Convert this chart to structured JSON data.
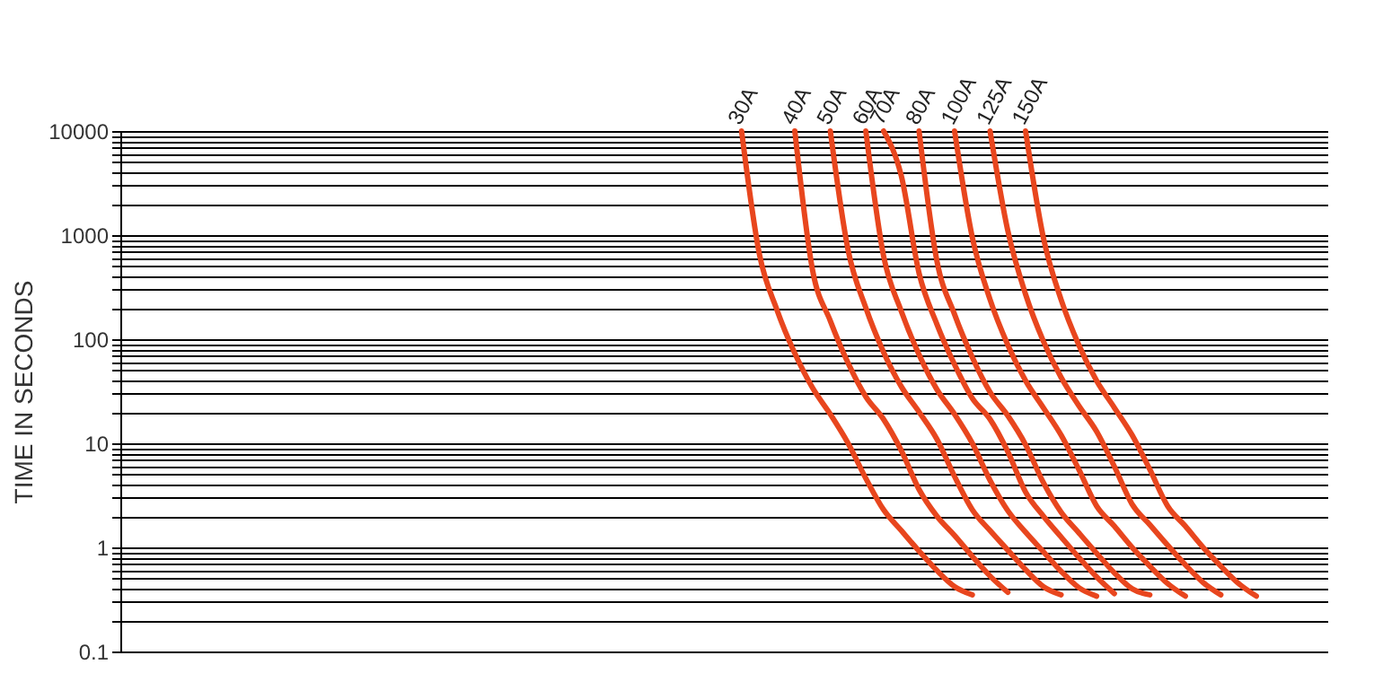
{
  "chart_data": {
    "type": "line",
    "ylabel": "TIME IN SECONDS",
    "categories": [
      null,
      null,
      null,
      null,
      null,
      null,
      null,
      null,
      null,
      null,
      null,
      null,
      null,
      null,
      null,
      null,
      null,
      null,
      null,
      null,
      null,
      null,
      null,
      null,
      null,
      null,
      null,
      null,
      null,
      null,
      null,
      null,
      null,
      null,
      null,
      null,
      null,
      null,
      null,
      null,
      null,
      null,
      null,
      null,
      null,
      null,
      null,
      null,
      null,
      null,
      null,
      null,
      null,
      null,
      null,
      null,
      null,
      null,
      null,
      null,
      null,
      null,
      null,
      null,
      null,
      null,
      null,
      null,
      null
    ],
    "series": [
      {
        "name": "30A",
        "color": "#e8461e",
        "values": [
          null,
          null,
          null,
          null,
          null,
          null,
          null,
          null,
          null,
          null,
          null,
          null,
          null,
          null,
          null,
          null,
          null,
          null,
          null,
          null,
          null,
          null,
          null,
          null,
          null,
          null,
          null,
          null,
          null,
          null,
          null,
          null,
          null,
          null,
          null,
          10000,
          660,
          190,
          73,
          34,
          19,
          10,
          4.6,
          2.3,
          1.45,
          0.92,
          0.6,
          0.42,
          0.35,
          null,
          null,
          null,
          null,
          null,
          null,
          null,
          null,
          null,
          null,
          null,
          null,
          null,
          null,
          null,
          null,
          null,
          null,
          null,
          null
        ]
      },
      {
        "name": "40A",
        "color": "#e8461e",
        "values": [
          null,
          null,
          null,
          null,
          null,
          null,
          null,
          null,
          null,
          null,
          null,
          null,
          null,
          null,
          null,
          null,
          null,
          null,
          null,
          null,
          null,
          null,
          null,
          null,
          null,
          null,
          null,
          null,
          null,
          null,
          null,
          null,
          null,
          null,
          null,
          null,
          null,
          null,
          10000,
          460,
          150,
          59,
          28,
          17,
          8.5,
          3.6,
          2.0,
          1.3,
          0.82,
          0.53,
          0.37,
          null,
          null,
          null,
          null,
          null,
          null,
          null,
          null,
          null,
          null,
          null,
          null,
          null,
          null,
          null,
          null,
          null,
          null
        ]
      },
      {
        "name": "50A",
        "color": "#e8461e",
        "values": [
          null,
          null,
          null,
          null,
          null,
          null,
          null,
          null,
          null,
          null,
          null,
          null,
          null,
          null,
          null,
          null,
          null,
          null,
          null,
          null,
          null,
          null,
          null,
          null,
          null,
          null,
          null,
          null,
          null,
          null,
          null,
          null,
          null,
          null,
          null,
          null,
          null,
          null,
          null,
          null,
          10000,
          720,
          200,
          75,
          35,
          20,
          11,
          4.8,
          2.3,
          1.45,
          0.94,
          0.61,
          0.42,
          0.35,
          null,
          null,
          null,
          null,
          null,
          null,
          null,
          null,
          null,
          null,
          null,
          null,
          null,
          null,
          null
        ]
      },
      {
        "name": "60A",
        "color": "#e8461e",
        "values": [
          null,
          null,
          null,
          null,
          null,
          null,
          null,
          null,
          null,
          null,
          null,
          null,
          null,
          null,
          null,
          null,
          null,
          null,
          null,
          null,
          null,
          null,
          null,
          null,
          null,
          null,
          null,
          null,
          null,
          null,
          null,
          null,
          null,
          null,
          null,
          null,
          null,
          null,
          null,
          null,
          null,
          null,
          10000,
          630,
          185,
          71,
          33,
          19,
          10,
          4.4,
          2.25,
          1.4,
          0.91,
          0.59,
          0.41,
          0.34,
          null,
          null,
          null,
          null,
          null,
          null,
          null,
          null,
          null,
          null,
          null,
          null,
          null
        ]
      },
      {
        "name": "70A",
        "color": "#e8461e",
        "values": [
          null,
          null,
          null,
          null,
          null,
          null,
          null,
          null,
          null,
          null,
          null,
          null,
          null,
          null,
          null,
          null,
          null,
          null,
          null,
          null,
          null,
          null,
          null,
          null,
          null,
          null,
          null,
          null,
          null,
          null,
          null,
          null,
          null,
          null,
          null,
          null,
          null,
          null,
          null,
          null,
          null,
          null,
          null,
          10000,
          3700,
          430,
          140,
          57,
          27,
          17,
          8.3,
          3.4,
          2.0,
          1.26,
          0.8,
          0.52,
          0.36,
          null,
          null,
          null,
          null,
          null,
          null,
          null,
          null,
          null,
          null,
          null,
          null
        ]
      },
      {
        "name": "80A",
        "color": "#e8461e",
        "values": [
          null,
          null,
          null,
          null,
          null,
          null,
          null,
          null,
          null,
          null,
          null,
          null,
          null,
          null,
          null,
          null,
          null,
          null,
          null,
          null,
          null,
          null,
          null,
          null,
          null,
          null,
          null,
          null,
          null,
          null,
          null,
          null,
          null,
          null,
          null,
          null,
          null,
          null,
          null,
          null,
          null,
          null,
          null,
          null,
          null,
          10000,
          570,
          173,
          67,
          31,
          18.4,
          9.7,
          4.2,
          2.18,
          1.38,
          0.88,
          0.57,
          0.4,
          0.35,
          null,
          null,
          null,
          null,
          null,
          null,
          null,
          null,
          null,
          null
        ]
      },
      {
        "name": "100A",
        "color": "#e8461e",
        "values": [
          null,
          null,
          null,
          null,
          null,
          null,
          null,
          null,
          null,
          null,
          null,
          null,
          null,
          null,
          null,
          null,
          null,
          null,
          null,
          null,
          null,
          null,
          null,
          null,
          null,
          null,
          null,
          null,
          null,
          null,
          null,
          null,
          null,
          null,
          null,
          null,
          null,
          null,
          null,
          null,
          null,
          null,
          null,
          null,
          null,
          null,
          null,
          10000,
          950,
          240,
          88,
          40,
          22,
          12,
          5.6,
          2.5,
          1.6,
          1.0,
          0.66,
          0.45,
          0.34,
          null,
          null,
          null,
          null,
          null,
          null,
          null,
          null
        ]
      },
      {
        "name": "125A",
        "color": "#e8461e",
        "values": [
          null,
          null,
          null,
          null,
          null,
          null,
          null,
          null,
          null,
          null,
          null,
          null,
          null,
          null,
          null,
          null,
          null,
          null,
          null,
          null,
          null,
          null,
          null,
          null,
          null,
          null,
          null,
          null,
          null,
          null,
          null,
          null,
          null,
          null,
          null,
          null,
          null,
          null,
          null,
          null,
          null,
          null,
          null,
          null,
          null,
          null,
          null,
          null,
          null,
          10000,
          1100,
          270,
          96,
          43,
          23,
          13,
          6.0,
          2.6,
          1.65,
          1.05,
          0.68,
          0.46,
          0.35,
          null,
          null,
          null,
          null,
          null,
          null
        ]
      },
      {
        "name": "150A",
        "color": "#e8461e",
        "values": [
          null,
          null,
          null,
          null,
          null,
          null,
          null,
          null,
          null,
          null,
          null,
          null,
          null,
          null,
          null,
          null,
          null,
          null,
          null,
          null,
          null,
          null,
          null,
          null,
          null,
          null,
          null,
          null,
          null,
          null,
          null,
          null,
          null,
          null,
          null,
          null,
          null,
          null,
          null,
          null,
          null,
          null,
          null,
          null,
          null,
          null,
          null,
          null,
          null,
          null,
          null,
          10000,
          950,
          240,
          88,
          40,
          22,
          12,
          5.6,
          2.5,
          1.6,
          1.0,
          0.66,
          0.45,
          0.34,
          null,
          null,
          null,
          null
        ]
      }
    ],
    "log": "y",
    "ylim": [
      0.1,
      10000
    ],
    "yticks": [
      0.1,
      {
        "value": 0.2,
        "label": null
      },
      {
        "value": 0.3,
        "label": null
      },
      {
        "value": 0.4,
        "label": null
      },
      {
        "value": 0.5,
        "label": null
      },
      {
        "value": 0.6,
        "label": null
      },
      {
        "value": 0.7,
        "label": null
      },
      {
        "value": 0.8,
        "label": null
      },
      {
        "value": 0.9,
        "label": null
      },
      1,
      {
        "value": 2,
        "label": null
      },
      {
        "value": 3,
        "label": null
      },
      {
        "value": 4,
        "label": null
      },
      {
        "value": 5,
        "label": null
      },
      {
        "value": 6,
        "label": null
      },
      {
        "value": 7,
        "label": null
      },
      {
        "value": 8,
        "label": null
      },
      {
        "value": 9,
        "label": null
      },
      10,
      {
        "value": 20,
        "label": null
      },
      {
        "value": 30,
        "label": null
      },
      {
        "value": 40,
        "label": null
      },
      {
        "value": 50,
        "label": null
      },
      {
        "value": 60,
        "label": null
      },
      {
        "value": 70,
        "label": null
      },
      {
        "value": 80,
        "label": null
      },
      {
        "value": 90,
        "label": null
      },
      100,
      {
        "value": 200,
        "label": null
      },
      {
        "value": 300,
        "label": null
      },
      {
        "value": 400,
        "label": null
      },
      {
        "value": 500,
        "label": null
      },
      {
        "value": 600,
        "label": null
      },
      {
        "value": 700,
        "label": null
      },
      {
        "value": 800,
        "label": null
      },
      {
        "value": 900,
        "label": null
      },
      1000,
      {
        "value": 2000,
        "label": null
      },
      {
        "value": 3000,
        "label": null
      },
      {
        "value": 4000,
        "label": null
      },
      {
        "value": 5000,
        "label": null
      },
      {
        "value": 6000,
        "label": null
      },
      {
        "value": 7000,
        "label": null
      },
      {
        "value": 8000,
        "label": null
      },
      {
        "value": 9000,
        "label": null
      },
      10000
    ],
    "grid": "y",
    "legend": false,
    "tick_labels": "y"
  }
}
